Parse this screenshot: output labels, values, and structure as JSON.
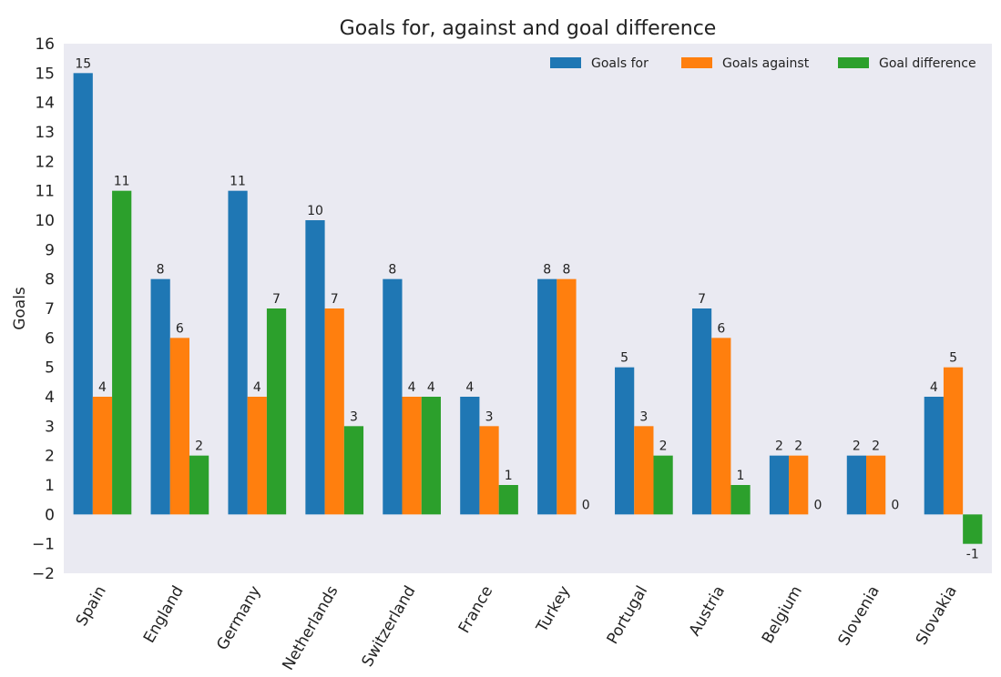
{
  "chart_data": {
    "type": "bar",
    "title": "Goals for, against and goal difference",
    "xlabel": "",
    "ylabel": "Goals",
    "ylim": [
      -2,
      16
    ],
    "yticks": [
      -2,
      -1,
      0,
      1,
      2,
      3,
      4,
      5,
      6,
      7,
      8,
      9,
      10,
      11,
      12,
      13,
      14,
      15,
      16
    ],
    "grid": false,
    "legend_position": "top-right",
    "categories": [
      "Spain",
      "England",
      "Germany",
      "Netherlands",
      "Switzerland",
      "France",
      "Turkey",
      "Portugal",
      "Austria",
      "Belgium",
      "Slovenia",
      "Slovakia"
    ],
    "series": [
      {
        "name": "Goals for",
        "color": "#1f77b4",
        "values": [
          15,
          8,
          11,
          10,
          8,
          4,
          8,
          5,
          7,
          2,
          2,
          4
        ]
      },
      {
        "name": "Goals against",
        "color": "#ff7f0e",
        "values": [
          4,
          6,
          4,
          7,
          4,
          3,
          8,
          3,
          6,
          2,
          2,
          5
        ]
      },
      {
        "name": "Goal difference",
        "color": "#2ca02c",
        "values": [
          11,
          2,
          7,
          3,
          4,
          1,
          0,
          2,
          1,
          0,
          0,
          -1
        ]
      }
    ]
  },
  "colors": {
    "background": "#eaeaf2"
  }
}
